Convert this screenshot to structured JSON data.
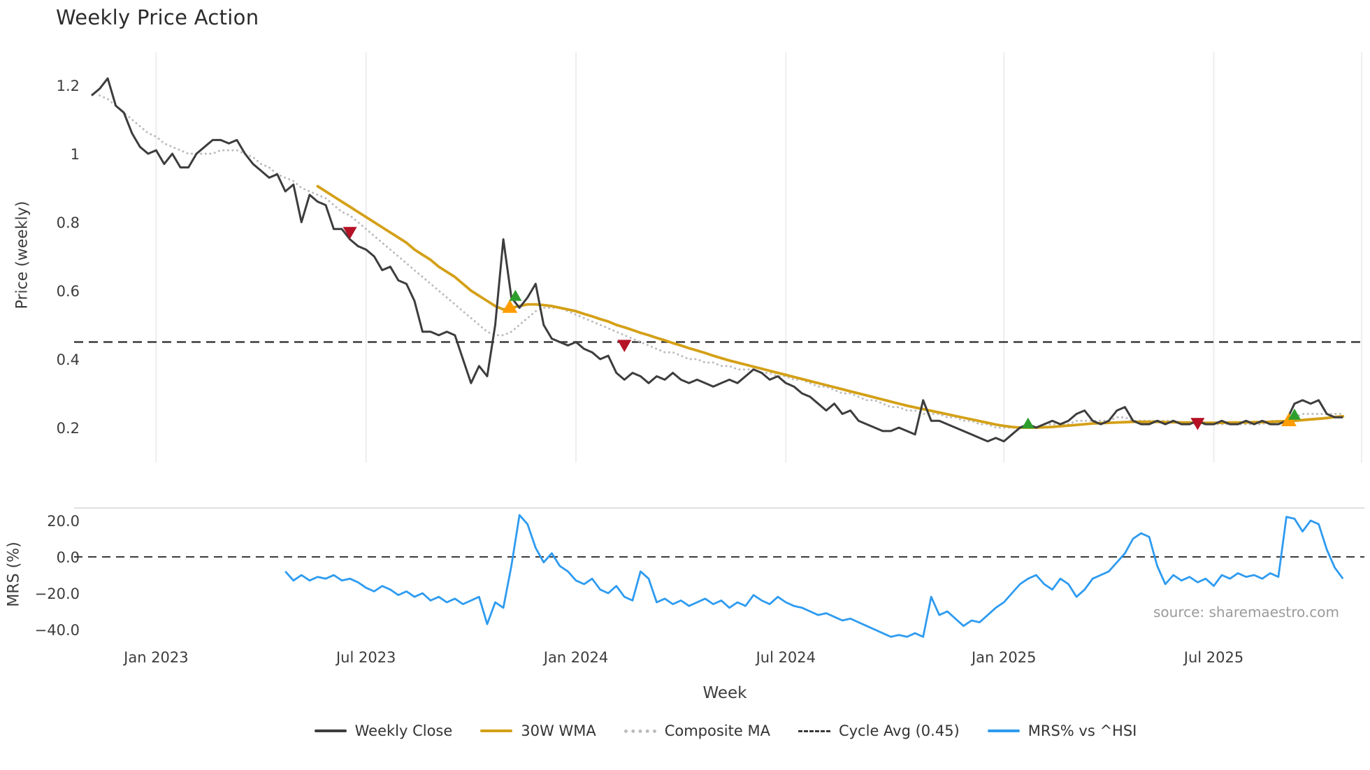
{
  "title": "Weekly Price Action",
  "watermark": "source: sharemaestro.com",
  "axes": {
    "price_label": "Price (weekly)",
    "mrs_label": "MRS (%)",
    "x_label": "Week"
  },
  "colors": {
    "close": "#3d3d3d",
    "wma": "#d4a017",
    "composite": "#bcbcbc",
    "cycle": "#3b3b3b",
    "mrs": "#2e9bf0",
    "buy": "#2d9e2d",
    "sell": "#b51225",
    "accum": "#ff9d00",
    "grid": "#eaeaef",
    "panel_border": "#d6d6d6"
  },
  "legend": [
    {
      "label": "Weekly Close",
      "color_key": "close",
      "style": "solid"
    },
    {
      "label": "30W WMA",
      "color_key": "wma",
      "style": "solid"
    },
    {
      "label": "Composite MA",
      "color_key": "composite",
      "style": "dotted"
    },
    {
      "label": "Cycle Avg (0.45)",
      "color_key": "cycle",
      "style": "dashed"
    },
    {
      "label": "MRS% vs ^HSI",
      "color_key": "mrs",
      "style": "solid"
    }
  ],
  "chart_data": [
    {
      "type": "line",
      "panel": "price",
      "title": "Weekly Price Action",
      "xlabel": "Week",
      "ylabel": "Price (weekly)",
      "ylim": [
        0.1,
        1.3
      ],
      "grid": "vertical-only",
      "yticks": {
        "values": [
          1.2,
          1.0,
          0.8,
          0.6,
          0.4,
          0.2
        ],
        "labels": [
          "1.2",
          "1",
          "0.8",
          "0.6",
          "0.4",
          "0.2"
        ]
      },
      "xticks": {
        "weeks": [
          8,
          34,
          60,
          86,
          113,
          139
        ],
        "labels": [
          "Jan 2023",
          "Jul 2023",
          "Jan 2024",
          "Jul 2024",
          "Jan 2025",
          "Jul 2025"
        ]
      },
      "cycle_avg": 0.45,
      "series": [
        {
          "name": "Weekly Close",
          "start_week": 0,
          "values": [
            1.17,
            1.19,
            1.22,
            1.14,
            1.12,
            1.06,
            1.02,
            1.0,
            1.01,
            0.97,
            1.0,
            0.96,
            0.96,
            1.0,
            1.02,
            1.04,
            1.04,
            1.03,
            1.04,
            1.0,
            0.97,
            0.95,
            0.93,
            0.94,
            0.89,
            0.91,
            0.8,
            0.88,
            0.86,
            0.85,
            0.78,
            0.78,
            0.75,
            0.73,
            0.72,
            0.7,
            0.66,
            0.67,
            0.63,
            0.62,
            0.57,
            0.48,
            0.48,
            0.47,
            0.48,
            0.47,
            0.4,
            0.33,
            0.38,
            0.35,
            0.5,
            0.75,
            0.58,
            0.55,
            0.58,
            0.62,
            0.5,
            0.46,
            0.45,
            0.44,
            0.45,
            0.43,
            0.42,
            0.4,
            0.41,
            0.36,
            0.34,
            0.36,
            0.35,
            0.33,
            0.35,
            0.34,
            0.36,
            0.34,
            0.33,
            0.34,
            0.33,
            0.32,
            0.33,
            0.34,
            0.33,
            0.35,
            0.37,
            0.36,
            0.34,
            0.35,
            0.33,
            0.32,
            0.3,
            0.29,
            0.27,
            0.25,
            0.27,
            0.24,
            0.25,
            0.22,
            0.21,
            0.2,
            0.19,
            0.19,
            0.2,
            0.19,
            0.18,
            0.28,
            0.22,
            0.22,
            0.21,
            0.2,
            0.19,
            0.18,
            0.17,
            0.16,
            0.17,
            0.16,
            0.18,
            0.2,
            0.21,
            0.2,
            0.21,
            0.22,
            0.21,
            0.22,
            0.24,
            0.25,
            0.22,
            0.21,
            0.22,
            0.25,
            0.26,
            0.22,
            0.21,
            0.21,
            0.22,
            0.21,
            0.22,
            0.21,
            0.21,
            0.22,
            0.21,
            0.21,
            0.22,
            0.21,
            0.21,
            0.22,
            0.21,
            0.22,
            0.21,
            0.21,
            0.22,
            0.27,
            0.28,
            0.27,
            0.28,
            0.24,
            0.23,
            0.23
          ]
        },
        {
          "name": "30W WMA",
          "start_week": 28,
          "values": [
            0.905,
            0.89,
            0.875,
            0.86,
            0.845,
            0.83,
            0.815,
            0.8,
            0.785,
            0.77,
            0.755,
            0.74,
            0.72,
            0.705,
            0.69,
            0.67,
            0.655,
            0.64,
            0.62,
            0.6,
            0.585,
            0.57,
            0.555,
            0.545,
            0.55,
            0.555,
            0.56,
            0.56,
            0.558,
            0.555,
            0.55,
            0.545,
            0.54,
            0.532,
            0.525,
            0.517,
            0.51,
            0.5,
            0.493,
            0.485,
            0.477,
            0.47,
            0.462,
            0.455,
            0.447,
            0.44,
            0.432,
            0.425,
            0.418,
            0.41,
            0.403,
            0.396,
            0.39,
            0.384,
            0.378,
            0.372,
            0.366,
            0.36,
            0.354,
            0.348,
            0.342,
            0.336,
            0.33,
            0.324,
            0.318,
            0.312,
            0.306,
            0.3,
            0.294,
            0.288,
            0.282,
            0.276,
            0.27,
            0.264,
            0.259,
            0.254,
            0.249,
            0.244,
            0.239,
            0.234,
            0.229,
            0.224,
            0.219,
            0.214,
            0.209,
            0.205,
            0.202,
            0.2,
            0.2,
            0.2,
            0.201,
            0.202,
            0.204,
            0.206,
            0.208,
            0.21,
            0.212,
            0.213,
            0.214,
            0.215,
            0.216,
            0.217,
            0.217,
            0.217,
            0.217,
            0.216,
            0.216,
            0.215,
            0.215,
            0.214,
            0.214,
            0.214,
            0.214,
            0.215,
            0.215,
            0.215,
            0.216,
            0.216,
            0.217,
            0.218,
            0.219,
            0.22,
            0.222,
            0.224,
            0.226,
            0.228,
            0.231,
            0.233
          ]
        },
        {
          "name": "Composite MA",
          "start_week": 1,
          "values": [
            1.17,
            1.16,
            1.14,
            1.12,
            1.1,
            1.08,
            1.06,
            1.05,
            1.03,
            1.02,
            1.01,
            1.0,
            1.0,
            1.0,
            1.0,
            1.01,
            1.01,
            1.01,
            1.0,
            0.99,
            0.97,
            0.96,
            0.94,
            0.93,
            0.92,
            0.9,
            0.89,
            0.88,
            0.87,
            0.85,
            0.83,
            0.82,
            0.8,
            0.78,
            0.76,
            0.74,
            0.72,
            0.7,
            0.68,
            0.66,
            0.64,
            0.62,
            0.6,
            0.58,
            0.56,
            0.54,
            0.52,
            0.5,
            0.48,
            0.47,
            0.47,
            0.48,
            0.5,
            0.52,
            0.54,
            0.55,
            0.55,
            0.55,
            0.54,
            0.53,
            0.52,
            0.51,
            0.5,
            0.49,
            0.48,
            0.47,
            0.46,
            0.45,
            0.44,
            0.43,
            0.42,
            0.42,
            0.41,
            0.4,
            0.4,
            0.39,
            0.39,
            0.38,
            0.38,
            0.37,
            0.37,
            0.37,
            0.36,
            0.36,
            0.35,
            0.35,
            0.34,
            0.34,
            0.33,
            0.32,
            0.32,
            0.31,
            0.3,
            0.3,
            0.29,
            0.28,
            0.28,
            0.27,
            0.26,
            0.26,
            0.25,
            0.25,
            0.24,
            0.24,
            0.24,
            0.23,
            0.23,
            0.22,
            0.22,
            0.21,
            0.21,
            0.2,
            0.2,
            0.2,
            0.2,
            0.2,
            0.2,
            0.21,
            0.21,
            0.21,
            0.21,
            0.22,
            0.22,
            0.22,
            0.22,
            0.22,
            0.23,
            0.23,
            0.22,
            0.22,
            0.22,
            0.22,
            0.22,
            0.22,
            0.21,
            0.21,
            0.21,
            0.21,
            0.21,
            0.21,
            0.21,
            0.21,
            0.21,
            0.21,
            0.21,
            0.22,
            0.22,
            0.22,
            0.23,
            0.24,
            0.24,
            0.24,
            0.24,
            0.24,
            0.24
          ]
        }
      ],
      "markers": {
        "sell": [
          {
            "week": 32,
            "price": 0.77
          },
          {
            "week": 66,
            "price": 0.44
          },
          {
            "week": 137,
            "price": 0.212
          }
        ],
        "buy": [
          {
            "week": 52.5,
            "price": 0.585
          },
          {
            "week": 116,
            "price": 0.212
          },
          {
            "week": 149,
            "price": 0.238
          }
        ],
        "accum": [
          {
            "week": 51.8,
            "price": 0.553
          },
          {
            "week": 148.3,
            "price": 0.222
          }
        ]
      }
    },
    {
      "type": "line",
      "panel": "mrs",
      "ylabel": "MRS (%)",
      "ylim": [
        -48,
        27
      ],
      "zero_line": 0,
      "yticks": {
        "values": [
          20,
          0,
          -20,
          -40
        ],
        "labels": [
          "20.0",
          "0.0",
          "−20.0",
          "−40.0"
        ]
      },
      "series": [
        {
          "name": "MRS% vs ^HSI",
          "start_week": 24,
          "values": [
            -8,
            -13,
            -10,
            -13,
            -11,
            -12,
            -10,
            -13,
            -12,
            -14,
            -17,
            -19,
            -16,
            -18,
            -21,
            -19,
            -22,
            -20,
            -24,
            -22,
            -25,
            -23,
            -26,
            -24,
            -22,
            -37,
            -25,
            -28,
            -5,
            23,
            18,
            5,
            -3,
            2,
            -5,
            -8,
            -13,
            -15,
            -12,
            -18,
            -20,
            -16,
            -22,
            -24,
            -8,
            -12,
            -25,
            -23,
            -26,
            -24,
            -27,
            -25,
            -23,
            -26,
            -24,
            -28,
            -25,
            -27,
            -21,
            -24,
            -26,
            -22,
            -25,
            -27,
            -28,
            -30,
            -32,
            -31,
            -33,
            -35,
            -34,
            -36,
            -38,
            -40,
            -42,
            -44,
            -43,
            -44,
            -42,
            -44,
            -22,
            -32,
            -30,
            -34,
            -38,
            -35,
            -36,
            -32,
            -28,
            -25,
            -20,
            -15,
            -12,
            -10,
            -15,
            -18,
            -12,
            -15,
            -22,
            -18,
            -12,
            -10,
            -8,
            -3,
            2,
            10,
            13,
            11,
            -5,
            -15,
            -10,
            -13,
            -11,
            -14,
            -12,
            -16,
            -10,
            -12,
            -9,
            -11,
            -10,
            -12,
            -9,
            -11,
            22,
            21,
            14,
            20,
            18,
            4,
            -6,
            -12
          ]
        }
      ]
    }
  ]
}
